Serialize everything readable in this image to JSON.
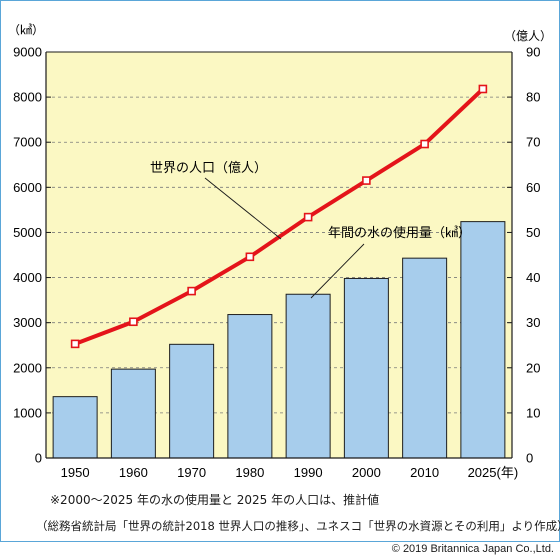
{
  "chart_data": {
    "type": "bar+line",
    "categories": [
      "1950",
      "1960",
      "1970",
      "1980",
      "1990",
      "2000",
      "2010",
      "2025(年)"
    ],
    "left_axis": {
      "unit": "（㎦）",
      "ylim": [
        0,
        9000
      ],
      "ticks": [
        "0",
        "1000",
        "2000",
        "3000",
        "4000",
        "5000",
        "6000",
        "7000",
        "8000",
        "9000"
      ]
    },
    "right_axis": {
      "unit": "（億人）",
      "ylim": [
        0,
        90
      ],
      "ticks": [
        "0",
        "10",
        "20",
        "30",
        "40",
        "50",
        "60",
        "70",
        "80",
        "90"
      ]
    },
    "series": [
      {
        "name": "年間の水の使用量（㎦）",
        "kind": "bar",
        "axis": "left",
        "values": [
          1360,
          1970,
          2520,
          3180,
          3630,
          3980,
          4430,
          5240
        ]
      },
      {
        "name": "世界の人口（億人）",
        "kind": "line",
        "axis": "right",
        "values": [
          25.3,
          30.2,
          37.0,
          44.6,
          53.4,
          61.5,
          69.6,
          81.8
        ]
      }
    ],
    "grid": "horizontal-dashed",
    "colors": {
      "plot_bg": "#fbf8c3",
      "bar": "#a7cdec",
      "bar_edge": "#1e1e1e",
      "line": "#e4141a",
      "marker_fill": "#ffffff",
      "frame": "#5aa6d8"
    }
  },
  "notes": {
    "estimate_note": "※2000～2025 年の水の使用量と 2025 年の人口は、推計値",
    "source": "（総務省統計局「世界の統計2018 世界人口の推移」、ユネスコ「世界の水資源とその利用」より作成）",
    "copyright": "© 2019 Britannica Japan Co.,Ltd."
  }
}
